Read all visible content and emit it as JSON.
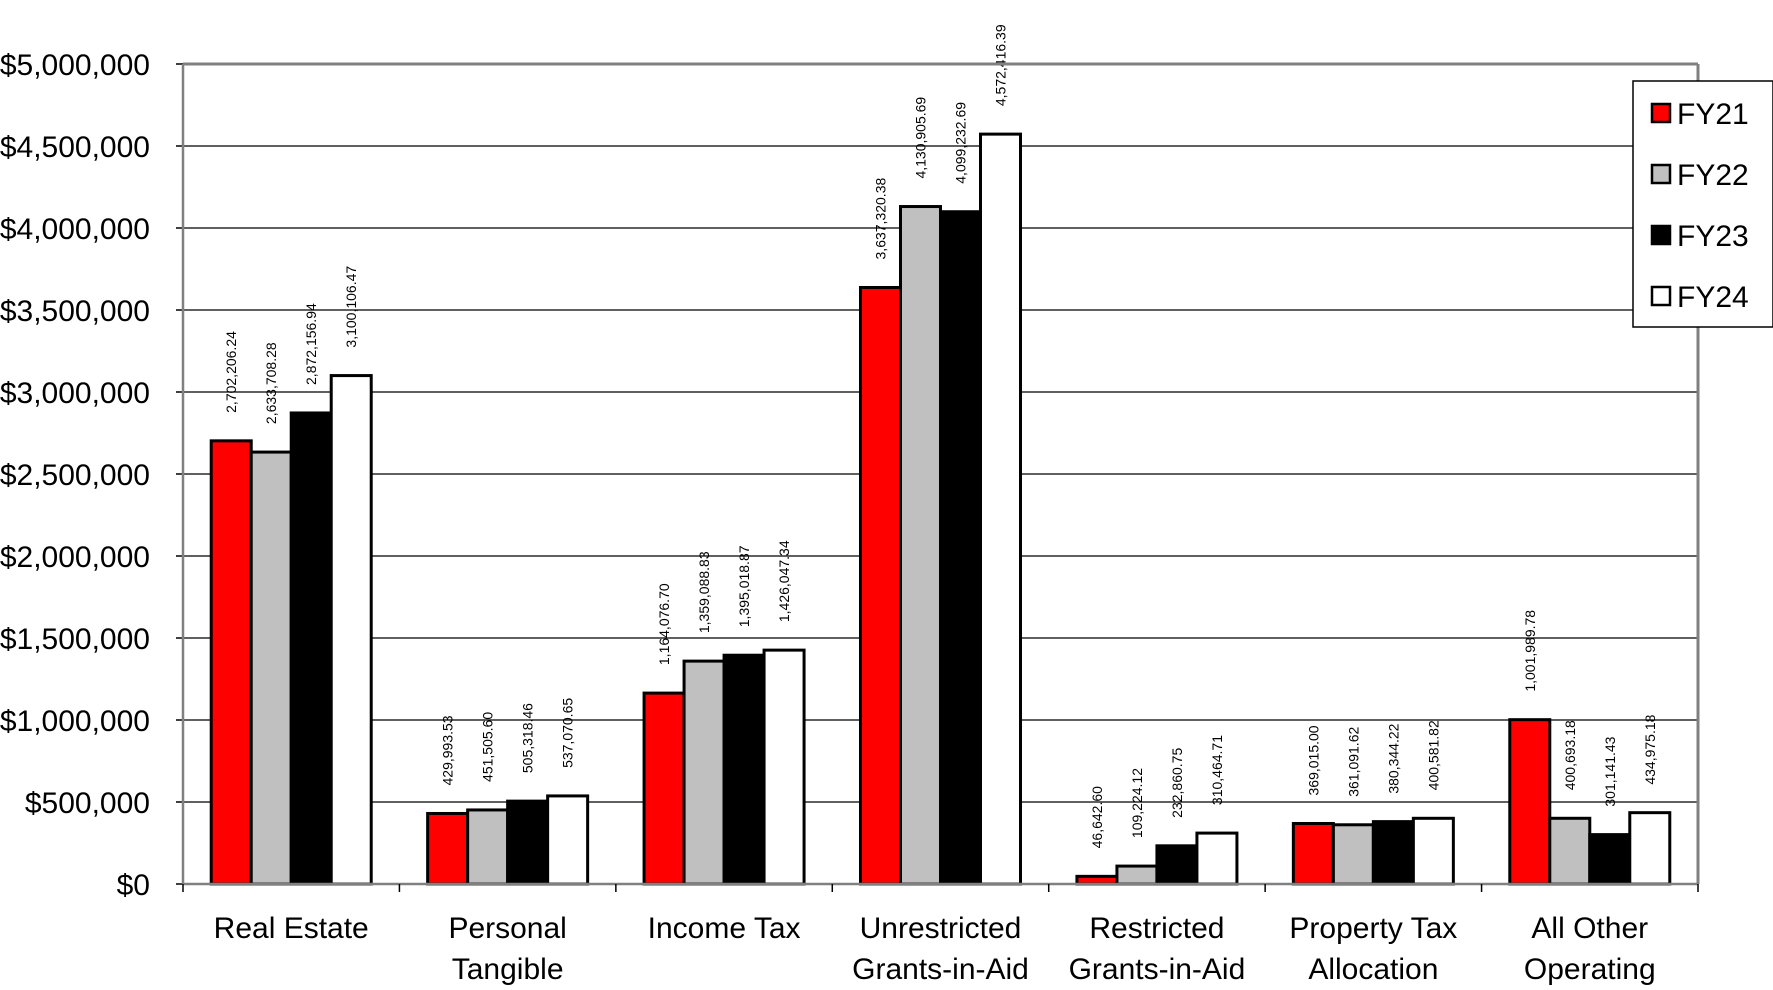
{
  "chart_data": {
    "type": "bar",
    "title": "",
    "xlabel": "",
    "ylabel": "",
    "ylim": [
      0,
      5000000
    ],
    "grid": true,
    "legend_position": "top-right",
    "ytick_labels": [
      "$0",
      "$500,000",
      "$1,000,000",
      "$1,500,000",
      "$2,000,000",
      "$2,500,000",
      "$3,000,000",
      "$3,500,000",
      "$4,000,000",
      "$4,500,000",
      "$5,000,000"
    ],
    "categories": [
      [
        "Real Estate"
      ],
      [
        "Personal",
        "Tangible"
      ],
      [
        "Income Tax"
      ],
      [
        "Unrestricted",
        "Grants-in-Aid"
      ],
      [
        "Restricted",
        "Grants-in-Aid"
      ],
      [
        "Property Tax",
        "Allocation"
      ],
      [
        "All Other",
        "Operating"
      ]
    ],
    "series": [
      {
        "name": "FY21",
        "color": "#ff0000",
        "values": [
          2702206.24,
          429993.53,
          1164076.7,
          3637320.38,
          46642.6,
          369015.0,
          1001989.78
        ],
        "labels": [
          "2,702,206.24",
          "429,993.53",
          "1,164,076.70",
          "3,637,320.38",
          "46,642.60",
          "369,015.00",
          "1,001,989.78"
        ]
      },
      {
        "name": "FY22",
        "color": "#c0c0c0",
        "values": [
          2633708.28,
          451505.6,
          1359088.83,
          4130905.69,
          109224.12,
          361091.62,
          400693.18
        ],
        "labels": [
          "2,633,708.28",
          "451,505.60",
          "1,359,088.83",
          "4,130,905.69",
          "109,224.12",
          "361,091.62",
          "400,693.18"
        ]
      },
      {
        "name": "FY23",
        "color": "#000000",
        "values": [
          2872156.94,
          505318.46,
          1395018.87,
          4099232.69,
          232860.75,
          380344.22,
          301141.43
        ],
        "labels": [
          "2,872,156.94",
          "505,318.46",
          "1,395,018.87",
          "4,099,232.69",
          "232,860.75",
          "380,344.22",
          "301,141.43"
        ]
      },
      {
        "name": "FY24",
        "color": "#ffffff",
        "values": [
          3100106.47,
          537070.65,
          1426047.34,
          4572416.39,
          310464.71,
          400581.82,
          434975.18
        ],
        "labels": [
          "3,100,106.47",
          "537,070.65",
          "1,426,047.34",
          "4,572,416.39",
          "310,464.71",
          "400,581.82",
          "434,975.18"
        ]
      }
    ]
  }
}
